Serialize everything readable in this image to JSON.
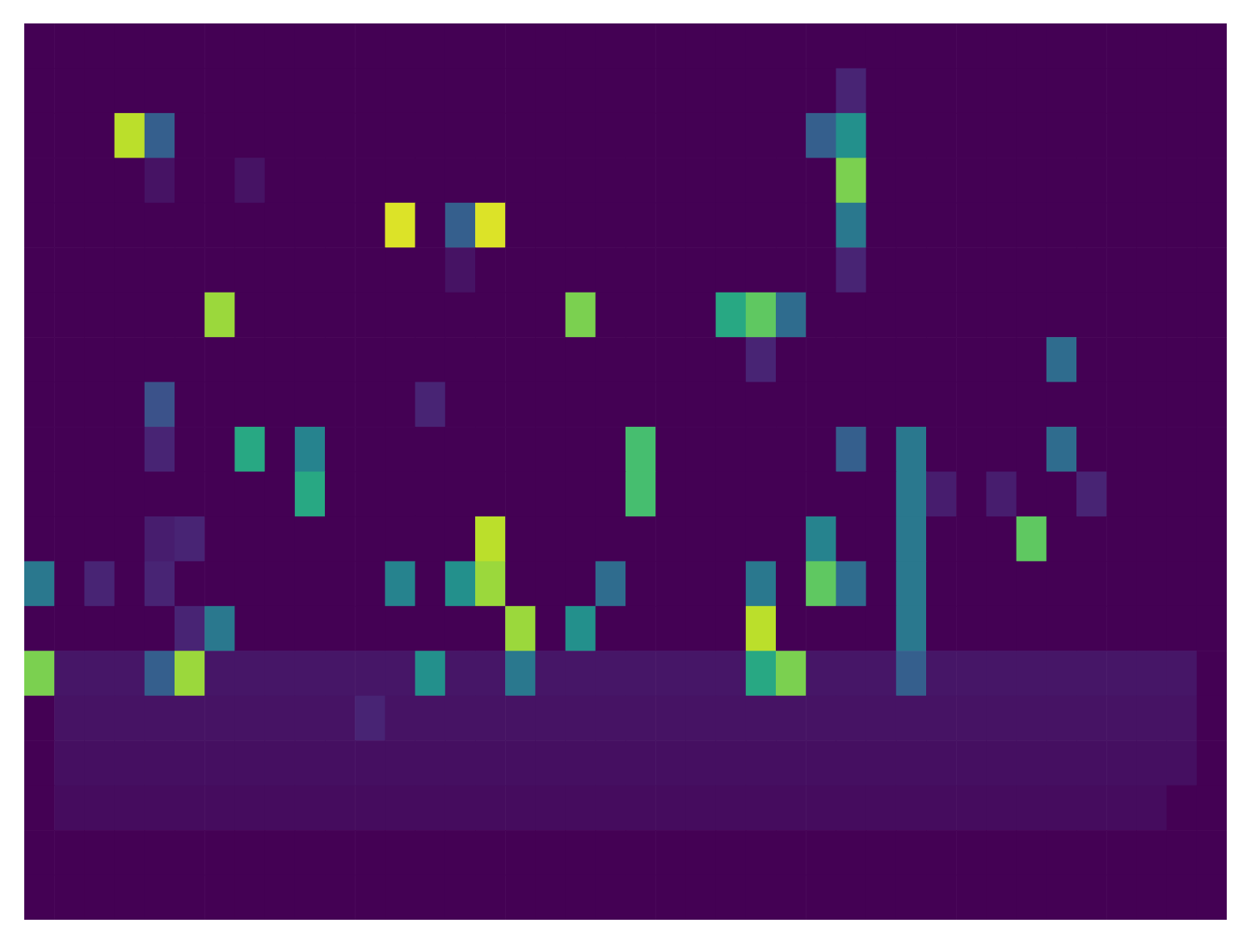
{
  "chart_data": {
    "type": "heatmap",
    "tick_labels": false,
    "color_range": [
      0,
      1
    ],
    "cells": [
      [
        0,
        0,
        0,
        0,
        0,
        0,
        0,
        0,
        0,
        0,
        0,
        0,
        0,
        0,
        0,
        0,
        0,
        0,
        0,
        0,
        0,
        0,
        0,
        0,
        0,
        0,
        0,
        0,
        0,
        0,
        0,
        0,
        0,
        0,
        0,
        0,
        0,
        0,
        0,
        0
      ],
      [
        0,
        0,
        0,
        0,
        0,
        0,
        0,
        0,
        0,
        0,
        0,
        0,
        0,
        0,
        0,
        0,
        0,
        0,
        0,
        0,
        0,
        0,
        0,
        0,
        0,
        0,
        0,
        0.1,
        0,
        0,
        0,
        0,
        0,
        0,
        0,
        0,
        0,
        0,
        0,
        0
      ],
      [
        0,
        0,
        0,
        0.9,
        0.3,
        0,
        0,
        0,
        0,
        0,
        0,
        0,
        0,
        0,
        0,
        0,
        0,
        0,
        0,
        0,
        0,
        0,
        0,
        0,
        0,
        0,
        0.3,
        0.5,
        0,
        0,
        0,
        0,
        0,
        0,
        0,
        0,
        0,
        0,
        0,
        0
      ],
      [
        0,
        0,
        0,
        0,
        0.05,
        0,
        0,
        0.05,
        0,
        0,
        0,
        0,
        0,
        0,
        0,
        0,
        0,
        0,
        0,
        0,
        0,
        0,
        0,
        0,
        0,
        0,
        0,
        0.8,
        0,
        0,
        0,
        0,
        0,
        0,
        0,
        0,
        0,
        0,
        0,
        0
      ],
      [
        0,
        0,
        0,
        0,
        0,
        0,
        0,
        0,
        0,
        0,
        0,
        0,
        0.95,
        0,
        0.3,
        0.95,
        0,
        0,
        0,
        0,
        0,
        0,
        0,
        0,
        0,
        0,
        0,
        0.4,
        0,
        0,
        0,
        0,
        0,
        0,
        0,
        0,
        0,
        0,
        0,
        0
      ],
      [
        0,
        0,
        0,
        0,
        0,
        0,
        0,
        0,
        0,
        0,
        0,
        0,
        0,
        0,
        0.05,
        0,
        0,
        0,
        0,
        0,
        0,
        0,
        0,
        0,
        0,
        0,
        0,
        0.1,
        0,
        0,
        0,
        0,
        0,
        0,
        0,
        0,
        0,
        0,
        0,
        0
      ],
      [
        0,
        0,
        0,
        0,
        0,
        0,
        0.85,
        0,
        0,
        0,
        0,
        0,
        0,
        0,
        0,
        0,
        0,
        0,
        0.8,
        0,
        0,
        0,
        0,
        0.6,
        0.75,
        0.35,
        0,
        0,
        0,
        0,
        0,
        0,
        0,
        0,
        0,
        0,
        0,
        0,
        0,
        0
      ],
      [
        0,
        0,
        0,
        0,
        0,
        0,
        0,
        0,
        0,
        0,
        0,
        0,
        0,
        0,
        0,
        0,
        0,
        0,
        0,
        0,
        0,
        0,
        0,
        0,
        0.1,
        0,
        0,
        0,
        0,
        0,
        0,
        0,
        0,
        0,
        0.35,
        0,
        0,
        0,
        0,
        0
      ],
      [
        0,
        0,
        0,
        0,
        0.25,
        0,
        0,
        0,
        0,
        0,
        0,
        0,
        0,
        0.1,
        0,
        0,
        0,
        0,
        0,
        0,
        0,
        0,
        0,
        0,
        0,
        0,
        0,
        0,
        0,
        0,
        0,
        0,
        0,
        0,
        0,
        0,
        0,
        0,
        0,
        0
      ],
      [
        0,
        0,
        0,
        0,
        0.1,
        0,
        0,
        0.6,
        0,
        0.45,
        0,
        0,
        0,
        0,
        0,
        0,
        0,
        0,
        0,
        0,
        0.7,
        0,
        0,
        0,
        0,
        0,
        0,
        0.3,
        0,
        0.4,
        0,
        0,
        0,
        0,
        0.35,
        0,
        0,
        0,
        0,
        0
      ],
      [
        0,
        0,
        0,
        0,
        0,
        0,
        0,
        0,
        0,
        0.6,
        0,
        0,
        0,
        0,
        0,
        0,
        0,
        0,
        0,
        0,
        0.7,
        0,
        0,
        0,
        0,
        0,
        0,
        0,
        0,
        0.4,
        0.08,
        0,
        0.08,
        0,
        0,
        0.1,
        0,
        0,
        0,
        0
      ],
      [
        0,
        0,
        0,
        0,
        0.08,
        0.1,
        0,
        0,
        0,
        0,
        0,
        0,
        0,
        0,
        0,
        0.9,
        0,
        0,
        0,
        0,
        0,
        0,
        0,
        0,
        0,
        0,
        0.45,
        0,
        0,
        0.4,
        0,
        0,
        0,
        0.75,
        0,
        0,
        0,
        0,
        0,
        0
      ],
      [
        0.4,
        0,
        0.1,
        0,
        0.1,
        0,
        0,
        0,
        0,
        0,
        0,
        0,
        0.45,
        0,
        0.5,
        0.85,
        0,
        0,
        0,
        0.35,
        0,
        0,
        0,
        0,
        0.4,
        0,
        0.75,
        0.35,
        0,
        0.4,
        0,
        0,
        0,
        0,
        0,
        0,
        0,
        0,
        0,
        0
      ],
      [
        0,
        0,
        0,
        0,
        0,
        0.1,
        0.4,
        0,
        0,
        0,
        0,
        0,
        0,
        0,
        0,
        0,
        0.85,
        0,
        0.5,
        0,
        0,
        0,
        0,
        0,
        0.9,
        0,
        0,
        0,
        0,
        0.4,
        0,
        0,
        0,
        0,
        0,
        0,
        0,
        0,
        0,
        0
      ],
      [
        0.8,
        0.06,
        0.06,
        0.06,
        0.3,
        0.85,
        0.06,
        0.06,
        0.06,
        0.06,
        0.06,
        0.06,
        0.06,
        0.5,
        0.06,
        0.06,
        0.4,
        0.06,
        0.06,
        0.06,
        0.06,
        0.06,
        0.06,
        0.06,
        0.6,
        0.8,
        0.06,
        0.06,
        0.06,
        0.3,
        0.06,
        0.06,
        0.06,
        0.06,
        0.06,
        0.06,
        0.06,
        0.06,
        0.06,
        0
      ],
      [
        0,
        0.05,
        0.05,
        0.05,
        0.05,
        0.05,
        0.05,
        0.05,
        0.05,
        0.05,
        0.05,
        0.1,
        0.05,
        0.05,
        0.05,
        0.05,
        0.05,
        0.05,
        0.05,
        0.05,
        0.05,
        0.05,
        0.05,
        0.05,
        0.05,
        0.05,
        0.05,
        0.05,
        0.05,
        0.05,
        0.05,
        0.05,
        0.05,
        0.05,
        0.05,
        0.05,
        0.05,
        0.05,
        0.05,
        0
      ],
      [
        0,
        0.04,
        0.04,
        0.04,
        0.04,
        0.04,
        0.04,
        0.04,
        0.04,
        0.04,
        0.04,
        0.04,
        0.04,
        0.04,
        0.04,
        0.04,
        0.04,
        0.04,
        0.04,
        0.04,
        0.04,
        0.04,
        0.04,
        0.04,
        0.04,
        0.04,
        0.04,
        0.04,
        0.04,
        0.04,
        0.04,
        0.04,
        0.04,
        0.04,
        0.04,
        0.04,
        0.04,
        0.04,
        0.04,
        0
      ],
      [
        0,
        0.03,
        0.03,
        0.03,
        0.03,
        0.03,
        0.03,
        0.03,
        0.03,
        0.03,
        0.03,
        0.03,
        0.03,
        0.03,
        0.03,
        0.03,
        0.03,
        0.03,
        0.03,
        0.03,
        0.03,
        0.03,
        0.03,
        0.03,
        0.03,
        0.03,
        0.03,
        0.03,
        0.03,
        0.03,
        0.03,
        0.03,
        0.03,
        0.03,
        0.03,
        0.03,
        0.03,
        0.03,
        0,
        0
      ],
      [
        0,
        0,
        0,
        0,
        0,
        0,
        0,
        0,
        0,
        0,
        0,
        0,
        0,
        0,
        0,
        0,
        0,
        0,
        0,
        0,
        0,
        0,
        0,
        0,
        0,
        0,
        0,
        0,
        0,
        0,
        0,
        0,
        0,
        0,
        0,
        0,
        0,
        0,
        0,
        0
      ],
      [
        0,
        0,
        0,
        0,
        0,
        0,
        0,
        0,
        0,
        0,
        0,
        0,
        0,
        0,
        0,
        0,
        0,
        0,
        0,
        0,
        0,
        0,
        0,
        0,
        0,
        0,
        0,
        0,
        0,
        0,
        0,
        0,
        0,
        0,
        0,
        0,
        0,
        0,
        0,
        0
      ]
    ]
  }
}
